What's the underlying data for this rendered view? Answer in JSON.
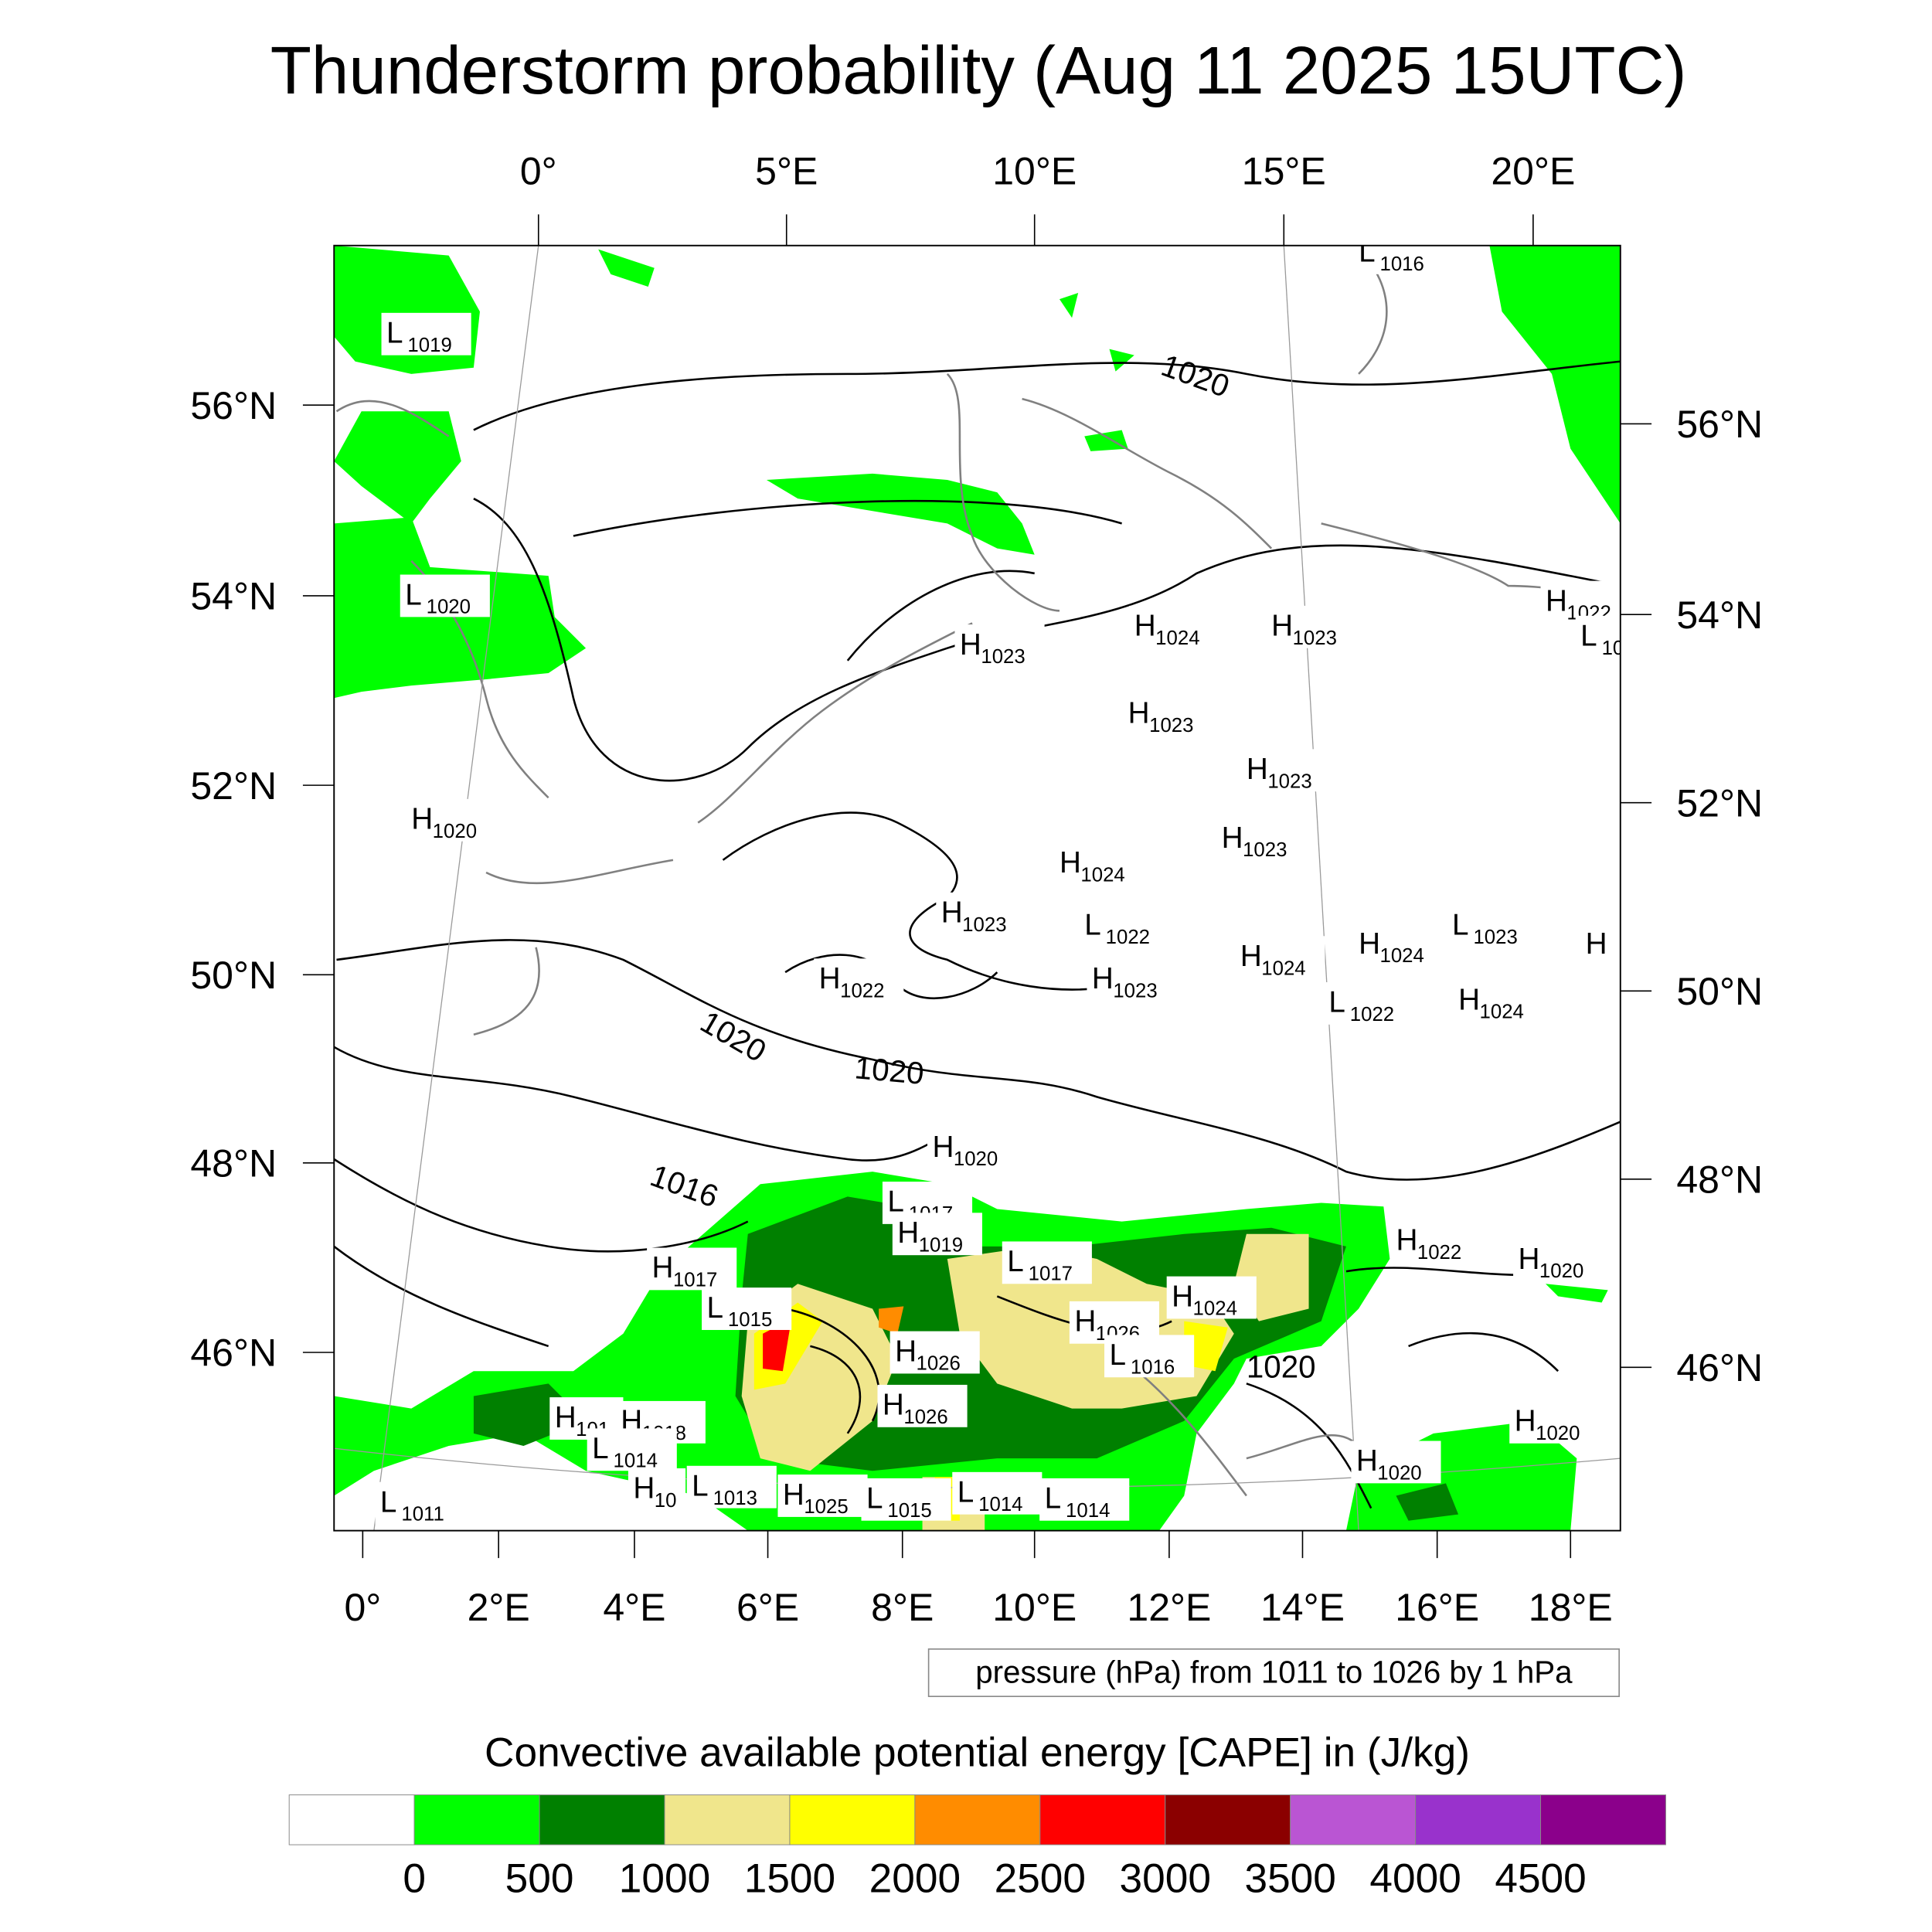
{
  "title": "Thunderstorm probability (Aug 11 2025 15UTC)",
  "axes": {
    "top_lon": [
      "0°",
      "5°E",
      "10°E",
      "15°E",
      "20°E"
    ],
    "bottom_lon": [
      "0°",
      "2°E",
      "4°E",
      "6°E",
      "8°E",
      "10°E",
      "12°E",
      "14°E",
      "16°E",
      "18°E"
    ],
    "left_lat": [
      "56°N",
      "54°N",
      "52°N",
      "50°N",
      "48°N",
      "46°N"
    ],
    "right_lat": [
      "56°N",
      "54°N",
      "52°N",
      "50°N",
      "48°N",
      "46°N"
    ]
  },
  "contour_info": "pressure (hPa) from 1011 to 1026 by 1 hPa",
  "contour_labels": [
    "1020",
    "1020",
    "1020",
    "1016",
    "1020"
  ],
  "pressure_centers": [
    {
      "type": "L",
      "value": "1016"
    },
    {
      "type": "L",
      "value": "1019"
    },
    {
      "type": "L",
      "value": "1020"
    },
    {
      "type": "H",
      "value": "1023"
    },
    {
      "type": "H",
      "value": "1024"
    },
    {
      "type": "H",
      "value": "1023"
    },
    {
      "type": "H",
      "value": "1022"
    },
    {
      "type": "L",
      "value": "10"
    },
    {
      "type": "H",
      "value": "1023"
    },
    {
      "type": "H",
      "value": "1023"
    },
    {
      "type": "H",
      "value": "1020"
    },
    {
      "type": "H",
      "value": "1023"
    },
    {
      "type": "H",
      "value": "1024"
    },
    {
      "type": "H",
      "value": "1023"
    },
    {
      "type": "L",
      "value": "1022"
    },
    {
      "type": "L",
      "value": "1023"
    },
    {
      "type": "H",
      "value": "1024"
    },
    {
      "type": "H",
      "value": "1024"
    },
    {
      "type": "H",
      "value": ""
    },
    {
      "type": "H",
      "value": "1022"
    },
    {
      "type": "H",
      "value": "1023"
    },
    {
      "type": "L",
      "value": "1022"
    },
    {
      "type": "H",
      "value": "1024"
    },
    {
      "type": "H",
      "value": "1020"
    },
    {
      "type": "L",
      "value": "1017"
    },
    {
      "type": "H",
      "value": "1019"
    },
    {
      "type": "H",
      "value": "1022"
    },
    {
      "type": "H",
      "value": "1020"
    },
    {
      "type": "H",
      "value": "1017"
    },
    {
      "type": "L",
      "value": "1017"
    },
    {
      "type": "L",
      "value": "1015"
    },
    {
      "type": "H",
      "value": "1024"
    },
    {
      "type": "H",
      "value": "1026"
    },
    {
      "type": "H",
      "value": "1026"
    },
    {
      "type": "L",
      "value": "1016"
    },
    {
      "type": "H",
      "value": "1026"
    },
    {
      "type": "H",
      "value": "101"
    },
    {
      "type": "H",
      "value": "1018"
    },
    {
      "type": "L",
      "value": "1014"
    },
    {
      "type": "H",
      "value": "1020"
    },
    {
      "type": "H",
      "value": "1020"
    },
    {
      "type": "L",
      "value": "1011"
    },
    {
      "type": "H",
      "value": "10"
    },
    {
      "type": "L",
      "value": "1013"
    },
    {
      "type": "H",
      "value": "1025"
    },
    {
      "type": "L",
      "value": "1015"
    },
    {
      "type": "L",
      "value": "1014"
    },
    {
      "type": "L",
      "value": "1014"
    }
  ],
  "colorbar": {
    "title": "Convective available potential energy [CAPE] in (J/kg)",
    "colors": [
      "#ffffff",
      "#00ff00",
      "#008000",
      "#f0e68c",
      "#ffff00",
      "#ff8c00",
      "#ff0000",
      "#8b0000",
      "#ba55d3",
      "#9932cc",
      "#8b008b"
    ],
    "labels": [
      "0",
      "500",
      "1000",
      "1500",
      "2000",
      "2500",
      "3000",
      "3500",
      "4000",
      "4500"
    ]
  }
}
